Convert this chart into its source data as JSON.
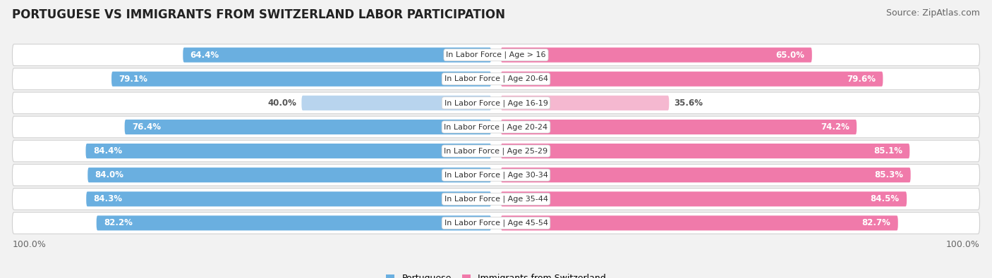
{
  "title": "PORTUGUESE VS IMMIGRANTS FROM SWITZERLAND LABOR PARTICIPATION",
  "source": "Source: ZipAtlas.com",
  "categories": [
    "In Labor Force | Age > 16",
    "In Labor Force | Age 20-64",
    "In Labor Force | Age 16-19",
    "In Labor Force | Age 20-24",
    "In Labor Force | Age 25-29",
    "In Labor Force | Age 30-34",
    "In Labor Force | Age 35-44",
    "In Labor Force | Age 45-54"
  ],
  "portuguese_values": [
    64.4,
    79.1,
    40.0,
    76.4,
    84.4,
    84.0,
    84.3,
    82.2
  ],
  "swiss_values": [
    65.0,
    79.6,
    35.6,
    74.2,
    85.1,
    85.3,
    84.5,
    82.7
  ],
  "portuguese_color": "#6aafe0",
  "swiss_color": "#f07aaa",
  "portuguese_color_light": "#b8d4ee",
  "swiss_color_light": "#f5b8d0",
  "background_color": "#f2f2f2",
  "row_bg_color": "#ffffff",
  "legend_label_portuguese": "Portuguese",
  "legend_label_swiss": "Immigrants from Switzerland",
  "title_fontsize": 12,
  "source_fontsize": 9,
  "value_fontsize": 8.5,
  "category_fontsize": 8,
  "axis_label_fontsize": 9
}
